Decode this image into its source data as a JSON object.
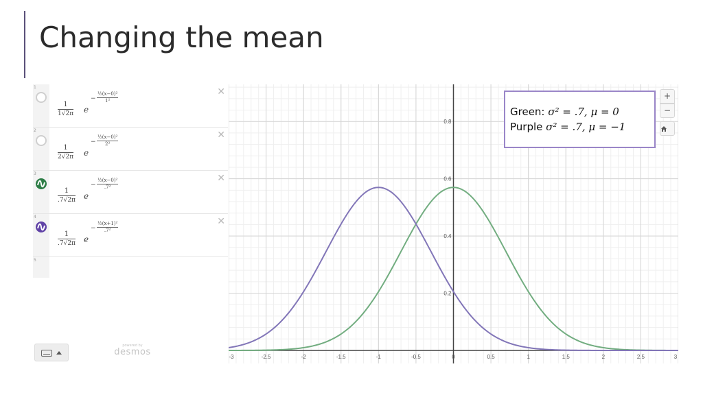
{
  "slide": {
    "title": "Changing the mean"
  },
  "expressions": [
    {
      "index": "1",
      "toggle": "off",
      "color": "",
      "num": "1",
      "den_coef": "1",
      "den_root": "√2π",
      "e": "e",
      "exp_minus": "−",
      "exp_num": "½(x−0)²",
      "exp_den": "1²"
    },
    {
      "index": "2",
      "toggle": "off",
      "color": "",
      "num": "1",
      "den_coef": "2",
      "den_root": "√2π",
      "e": "e",
      "exp_minus": "−",
      "exp_num": "½(x−0)²",
      "exp_den": "2²"
    },
    {
      "index": "3",
      "toggle": "on",
      "color": "#2d7d46",
      "num": "1",
      "den_coef": ".7",
      "den_root": "√2π",
      "e": "e",
      "exp_minus": "−",
      "exp_num": "½(x−0)²",
      "exp_den": ".7²"
    },
    {
      "index": "4",
      "toggle": "on",
      "color": "#6042a6",
      "num": "1",
      "den_coef": ".7",
      "den_root": "√2π",
      "e": "e",
      "exp_minus": "−",
      "exp_num": "½(x+1)²",
      "exp_den": ".7²"
    },
    {
      "index": "5"
    }
  ],
  "expression_panel": {
    "delete_symbol": "✕",
    "powered_by": "powered by",
    "brand": "desmos"
  },
  "graph_controls": {
    "zoom_in": "+",
    "zoom_out": "−"
  },
  "legend": {
    "green_label": "Green: ",
    "green_math": "σ² = .7, μ = 0",
    "purple_label": "Purple ",
    "purple_math": "σ² = .7, μ = −1",
    "border_color": "#9a86c8"
  },
  "chart_data": {
    "type": "line",
    "xlim": [
      -3,
      3
    ],
    "ylim": [
      0,
      0.93
    ],
    "x_ticks": [
      "-3",
      "-2.5",
      "-2",
      "-1.5",
      "-1",
      "-0.5",
      "0",
      "0.5",
      "1",
      "1.5",
      "2",
      "2.5",
      "3"
    ],
    "y_ticks": [
      "0.2",
      "0.4",
      "0.6",
      "0.8"
    ],
    "grid": true,
    "series": [
      {
        "color": "#72ad80",
        "mu": 0,
        "sigma": 0.7
      },
      {
        "color": "#8276b8",
        "mu": -1,
        "sigma": 0.7
      }
    ]
  }
}
